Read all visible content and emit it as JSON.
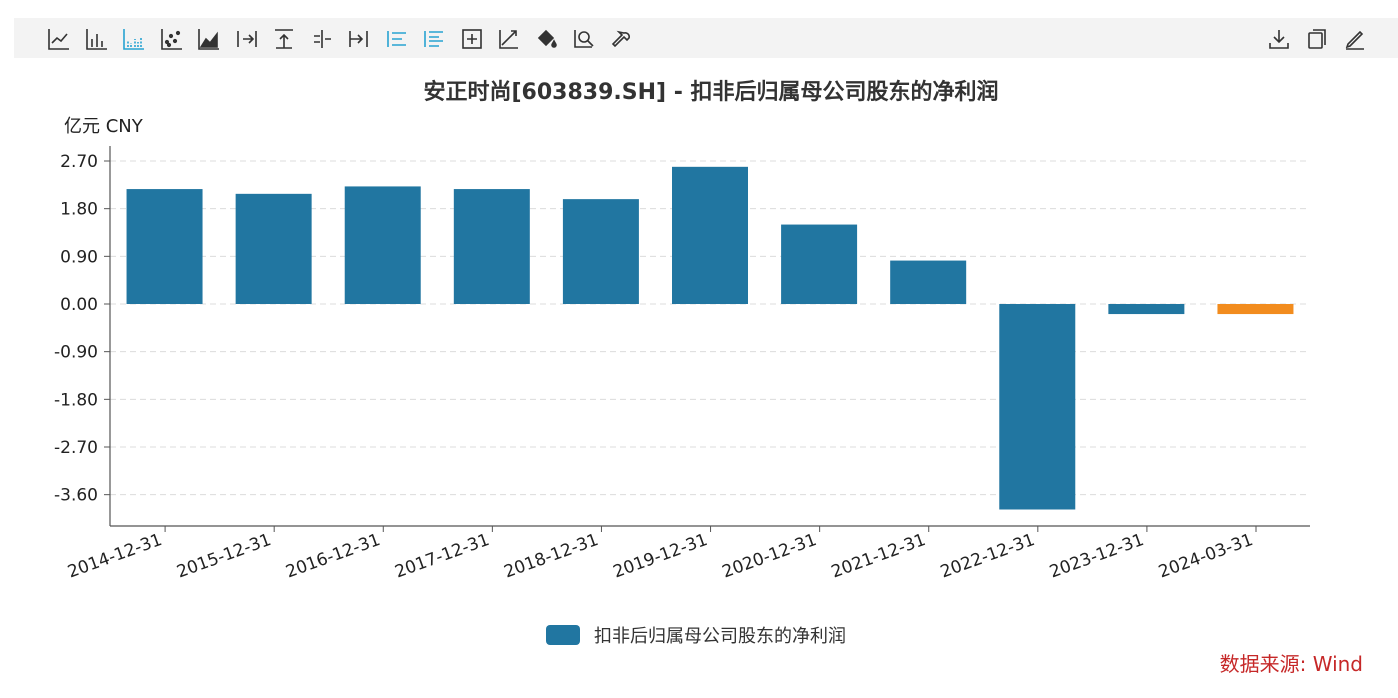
{
  "toolbar": {
    "left_tools": [
      {
        "name": "line-chart-icon"
      },
      {
        "name": "bar-chart-icon"
      },
      {
        "name": "grouped-bar-chart-icon",
        "active": true
      },
      {
        "name": "scatter-chart-icon"
      },
      {
        "name": "area-chart-icon"
      },
      {
        "name": "align-right-icon"
      },
      {
        "name": "align-top-icon"
      },
      {
        "name": "align-center-icon"
      },
      {
        "name": "align-end-icon"
      },
      {
        "name": "list-icon",
        "active": true
      },
      {
        "name": "list-dense-icon",
        "active": true
      },
      {
        "name": "crosshair-icon"
      },
      {
        "name": "trend-icon"
      },
      {
        "name": "fill-bucket-icon"
      },
      {
        "name": "zoom-search-icon"
      },
      {
        "name": "wrench-icon"
      }
    ],
    "right_tools": [
      {
        "name": "download-icon"
      },
      {
        "name": "copy-icon"
      },
      {
        "name": "edit-icon"
      }
    ]
  },
  "chart_data": {
    "type": "bar",
    "title": "安正时尚[603839.SH] - 扣非后归属母公司股东的净利润",
    "unit_label": "亿元  CNY",
    "categories": [
      "2014-12-31",
      "2015-12-31",
      "2016-12-31",
      "2017-12-31",
      "2018-12-31",
      "2019-12-31",
      "2020-12-31",
      "2021-12-31",
      "2022-12-31",
      "2023-12-31",
      "2024-03-31"
    ],
    "series": [
      {
        "name": "扣非后归属母公司股东的净利润",
        "values": [
          2.17,
          2.08,
          2.22,
          2.17,
          1.98,
          2.59,
          1.5,
          0.82,
          -3.88,
          -0.19,
          -0.19
        ],
        "color": "#2176a1",
        "highlight_color": "#f28c1e",
        "highlight_index": 10
      }
    ],
    "yticks": [
      "2.70",
      "1.80",
      "0.90",
      "0.00",
      "-0.90",
      "-1.80",
      "-2.70",
      "-3.60"
    ],
    "ytick_values": [
      2.7,
      1.8,
      0.9,
      0.0,
      -0.9,
      -1.8,
      -2.7,
      -3.6
    ],
    "ylim": [
      -4.23,
      2.88
    ],
    "grid": true,
    "legend_position": "bottom-center",
    "source": "数据来源: Wind"
  }
}
